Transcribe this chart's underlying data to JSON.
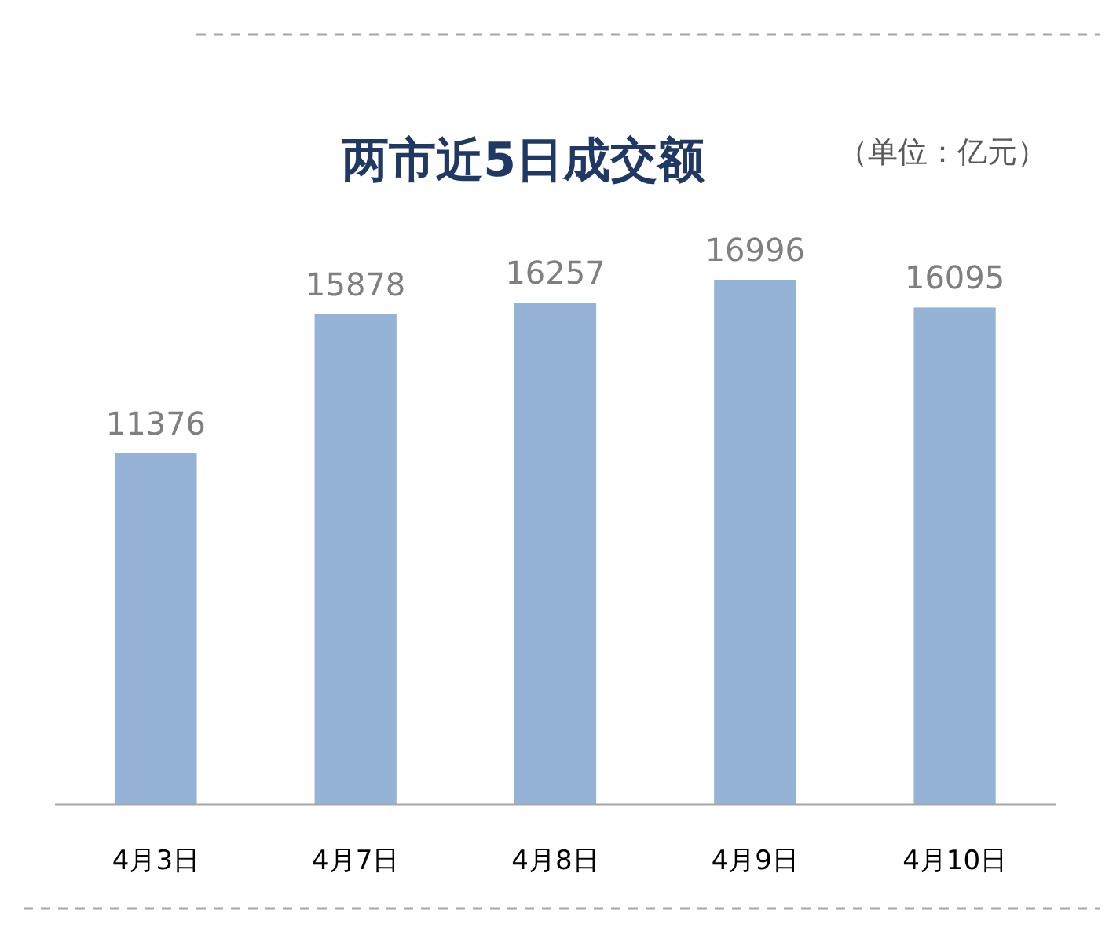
{
  "chart_data": {
    "type": "bar",
    "title": "两市近5日成交额",
    "subtitle": "（单位：亿元）",
    "categories": [
      "4月3日",
      "4月7日",
      "4月8日",
      "4月9日",
      "4月10日"
    ],
    "values": [
      11376,
      15878,
      16257,
      16996,
      16095
    ],
    "color": "#95b3d7",
    "data_labels": true
  }
}
